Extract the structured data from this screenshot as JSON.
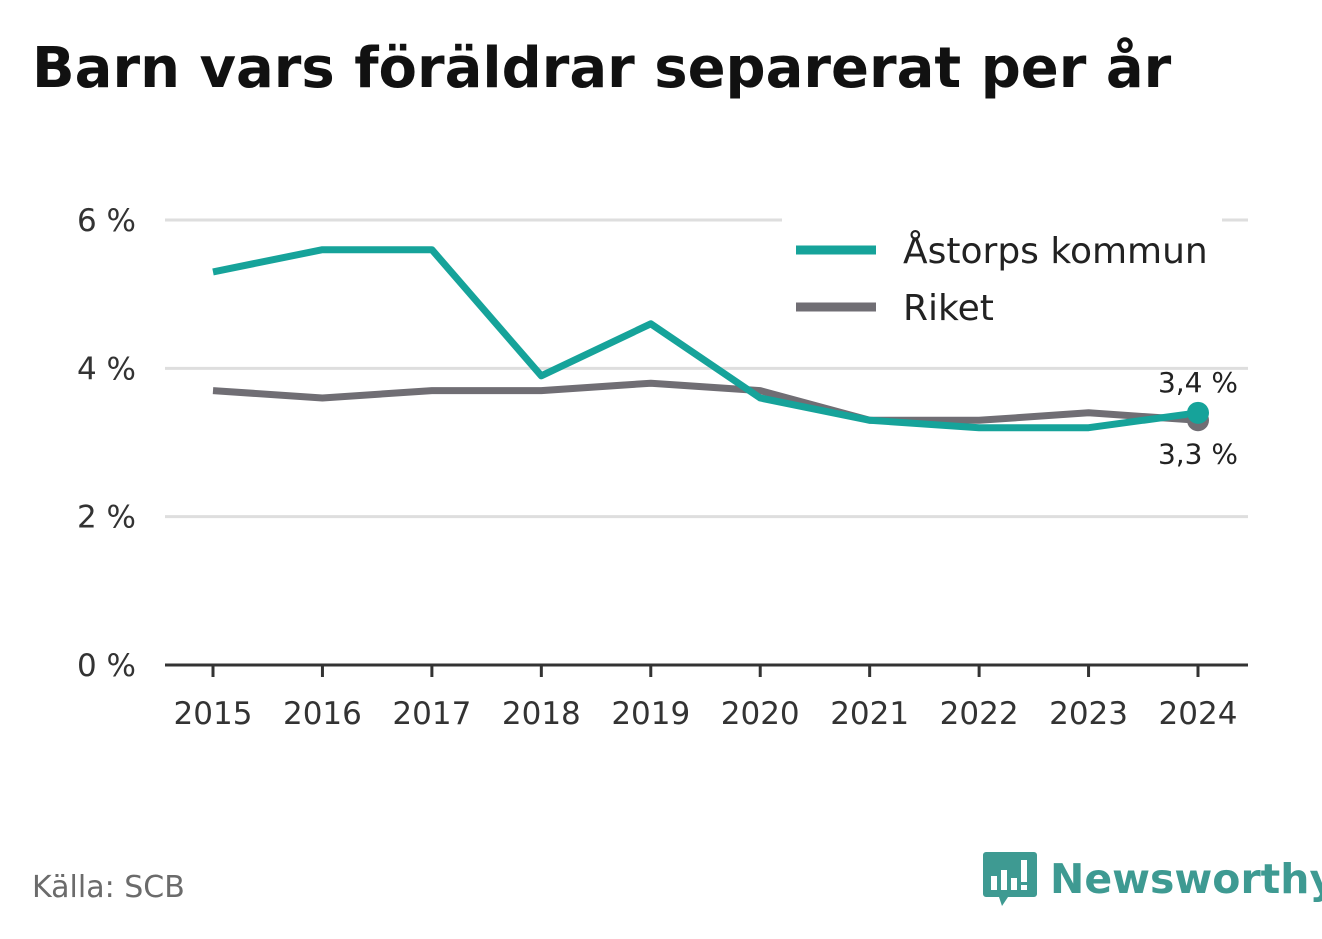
{
  "title": "Barn vars föräldrar separerat per år",
  "source": "Källa: SCB",
  "brand": {
    "name": "Newsworthy",
    "icon": "bar-chart-speech-bubble-icon",
    "color": "#3e9a92"
  },
  "colors": {
    "grid": "#dedede",
    "axis": "#333333"
  },
  "chart_data": {
    "type": "line",
    "categories": [
      "2015",
      "2016",
      "2017",
      "2018",
      "2019",
      "2020",
      "2021",
      "2022",
      "2023",
      "2024"
    ],
    "y_ticks": [
      {
        "value": 0,
        "label": "0 %"
      },
      {
        "value": 2,
        "label": "2 %"
      },
      {
        "value": 4,
        "label": "4 %"
      },
      {
        "value": 6,
        "label": "6 %"
      }
    ],
    "ylim": [
      0,
      6
    ],
    "grid": true,
    "legend_position": "top-right",
    "series": [
      {
        "name": "Åstorps kommun",
        "color": "#16a39a",
        "values": [
          5.3,
          5.6,
          5.6,
          3.9,
          4.6,
          3.6,
          3.3,
          3.2,
          3.2,
          3.4
        ],
        "end_label": "3,4 %"
      },
      {
        "name": "Riket",
        "color": "#706e74",
        "values": [
          3.7,
          3.6,
          3.7,
          3.7,
          3.8,
          3.7,
          3.3,
          3.3,
          3.4,
          3.3
        ],
        "end_label": "3,3 %"
      }
    ]
  }
}
